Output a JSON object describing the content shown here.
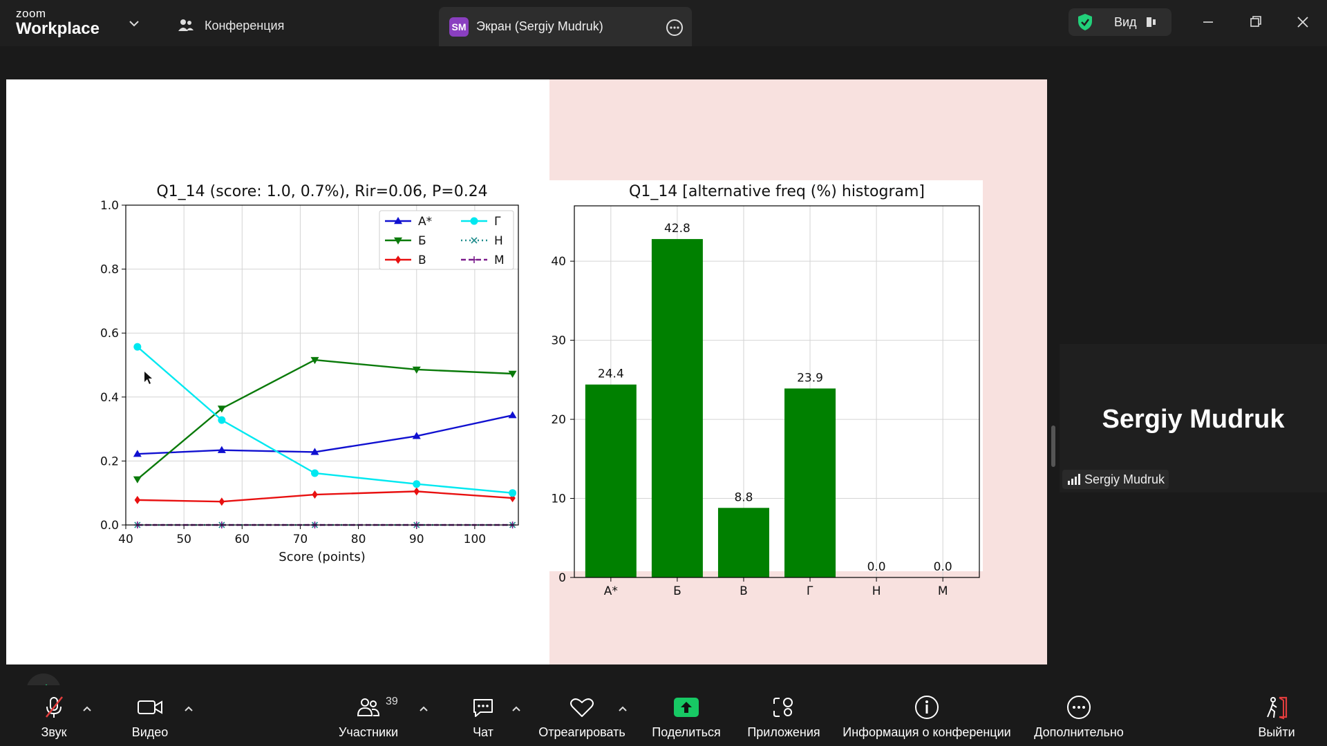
{
  "app": {
    "brand_line1": "zoom",
    "brand_line2": "Workplace"
  },
  "tabs": {
    "conference": "Конференция",
    "screen_badge": "SM",
    "screen": "Экран (Sergiy Mudruk)"
  },
  "view": {
    "label": "Вид"
  },
  "participant": {
    "display_name": "Sergiy Mudruk",
    "tag": "Sergiy Mudruk"
  },
  "toolbar": {
    "audio": "Звук",
    "video": "Видео",
    "participants": "Участники",
    "participants_count": "39",
    "chat": "Чат",
    "react": "Отреагировать",
    "share": "Поделиться",
    "apps": "Приложения",
    "info": "Информация о конференции",
    "more": "Дополнительно",
    "leave": "Выйти"
  },
  "colors": {
    "accent_green": "#22d07a",
    "share_green": "#17c964",
    "mute_red": "#e23d3d",
    "bar_green": "#008000"
  },
  "chart_data": [
    {
      "type": "line",
      "title": "Q1_14 (score: 1.0, 0.7%), Rir=0.06, P=0.24",
      "xlabel": "Score (points)",
      "ylabel": "",
      "xlim": [
        40,
        107.5
      ],
      "ylim": [
        0,
        1.0
      ],
      "xticks": [
        40,
        50,
        60,
        70,
        80,
        90,
        100
      ],
      "yticks": [
        0.0,
        0.2,
        0.4,
        0.6,
        0.8,
        1.0
      ],
      "grid": true,
      "legend": "top-right",
      "x": [
        42,
        56.5,
        72.5,
        90,
        106.5
      ],
      "series": [
        {
          "name": "A*",
          "color": "#1010d0",
          "marker": "tri-up",
          "values": [
            0.222,
            0.234,
            0.228,
            0.278,
            0.343
          ]
        },
        {
          "name": "Б",
          "color": "#0a7a0a",
          "marker": "tri-down",
          "values": [
            0.143,
            0.364,
            0.516,
            0.486,
            0.473
          ]
        },
        {
          "name": "В",
          "color": "#e81010",
          "marker": "diamond",
          "values": [
            0.078,
            0.073,
            0.095,
            0.105,
            0.084
          ]
        },
        {
          "name": "Г",
          "color": "#00e8f0",
          "marker": "circle",
          "values": [
            0.557,
            0.328,
            0.162,
            0.128,
            0.1
          ]
        },
        {
          "name": "Н",
          "color": "#1f8c8c",
          "marker": "x",
          "dashed": "dot",
          "values": [
            0,
            0,
            0,
            0,
            0
          ]
        },
        {
          "name": "М",
          "color": "#7a1a8a",
          "marker": "plus",
          "dashed": "dash",
          "values": [
            0,
            0,
            0,
            0,
            0
          ]
        }
      ]
    },
    {
      "type": "bar",
      "title": "Q1_14 [alternative freq (%) histogram]",
      "xlabel": "",
      "ylabel": "",
      "ylim": [
        0,
        47
      ],
      "yticks": [
        0,
        10,
        20,
        30,
        40
      ],
      "grid": true,
      "categories": [
        "A*",
        "Б",
        "В",
        "Г",
        "Н",
        "М"
      ],
      "values": [
        24.4,
        42.8,
        8.8,
        23.9,
        0.0,
        0.0
      ],
      "labels": [
        "24.4",
        "42.8",
        "8.8",
        "23.9",
        "0.0",
        "0.0"
      ],
      "color": "#008000"
    }
  ]
}
